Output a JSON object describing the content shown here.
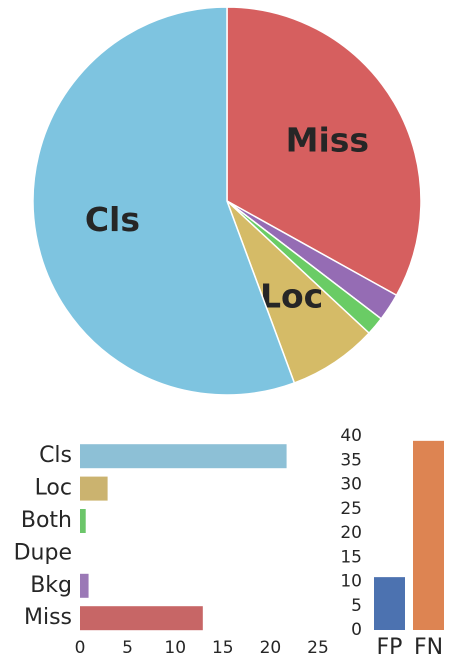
{
  "chart_data": [
    {
      "type": "pie",
      "categories": [
        "Cls",
        "Loc",
        "Both",
        "Dupe",
        "Bkg",
        "Miss"
      ],
      "values": [
        21.7,
        2.9,
        0.6,
        0,
        0.9,
        12.9
      ],
      "colors": [
        "#7ec4e0",
        "#d5bb67",
        "#6acc65",
        "#ee854a",
        "#956cb4",
        "#d65f5f"
      ]
    },
    {
      "type": "hbar",
      "categories": [
        "Cls",
        "Loc",
        "Both",
        "Dupe",
        "Bkg",
        "Miss"
      ],
      "values": [
        21.7,
        2.9,
        0.6,
        0,
        0.9,
        12.9
      ],
      "colors": [
        "#8dc0d6",
        "#cbb36f",
        "#6cc66a",
        "#e98d5a",
        "#9b79b6",
        "#c76666"
      ],
      "xlim": [
        0,
        25
      ],
      "xticks": [
        0,
        5,
        10,
        15,
        20,
        25
      ]
    },
    {
      "type": "bar",
      "categories": [
        "FP",
        "FN"
      ],
      "values": [
        10.9,
        39.0
      ],
      "colors": [
        "#4c72b0",
        "#dd8452"
      ],
      "ylim": [
        0,
        40
      ],
      "yticks": [
        0,
        5,
        10,
        15,
        20,
        25,
        30,
        35,
        40
      ]
    }
  ]
}
